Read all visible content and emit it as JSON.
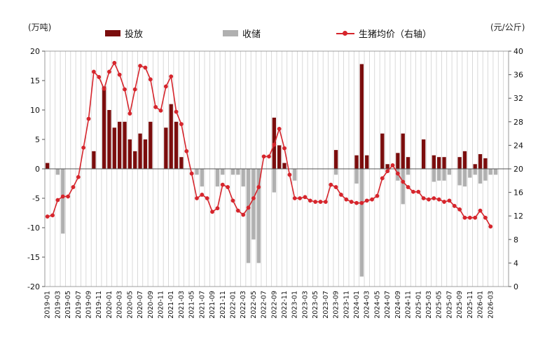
{
  "units": {
    "left": "(万吨)",
    "right": "(元/公斤)"
  },
  "legend": [
    {
      "label": "投放",
      "color": "#7b0d0d",
      "kind": "bar"
    },
    {
      "label": "收储",
      "color": "#b0b0b0",
      "kind": "bar"
    },
    {
      "label": "生猪均价（右轴）",
      "color": "#d6252c",
      "kind": "line"
    }
  ],
  "chart_data": {
    "type": "bar",
    "title": "",
    "ylim_left": [
      -20,
      20
    ],
    "yticks_left": [
      -20,
      -15,
      -10,
      -5,
      0,
      5,
      10,
      15,
      20
    ],
    "ylim_right": [
      0,
      40
    ],
    "yticks_right": [
      0,
      4,
      8,
      12,
      16,
      20,
      24,
      28,
      32,
      36,
      40
    ],
    "x_start": "2019-01",
    "x_months": 90,
    "xtick_labels": [
      "2019-01",
      "2019-03",
      "2019-05",
      "2019-07",
      "2019-09",
      "2019-11",
      "2020-01",
      "2020-03",
      "2020-05",
      "2020-07",
      "2020-09",
      "2020-11",
      "2021-01",
      "2021-03",
      "2021-05",
      "2021-07",
      "2021-09",
      "2021-11",
      "2022-01",
      "2022-03",
      "2022-05",
      "2022-07",
      "2022-09",
      "2022-11",
      "2023-01",
      "2023-03",
      "2023-05",
      "2023-07",
      "2023-09",
      "2023-11",
      "2024-01",
      "2024-03",
      "2024-05",
      "2024-07",
      "2024-09",
      "2024-11",
      "2025-01",
      "2025-03",
      "2025-05",
      "2025-07",
      "2025-09",
      "2025-11",
      "2026-01",
      "2026-03"
    ],
    "grid": "vertical",
    "series": [
      {
        "name": "投放",
        "color": "#7b0d0d",
        "points": [
          [
            "2019-01",
            1
          ],
          [
            "2019-10",
            3
          ],
          [
            "2019-12",
            14
          ],
          [
            "2020-01",
            10
          ],
          [
            "2020-02",
            7
          ],
          [
            "2020-03",
            8
          ],
          [
            "2020-04",
            8
          ],
          [
            "2020-05",
            5
          ],
          [
            "2020-06",
            3
          ],
          [
            "2020-07",
            6
          ],
          [
            "2020-08",
            5
          ],
          [
            "2020-09",
            8
          ],
          [
            "2020-12",
            7
          ],
          [
            "2021-01",
            11
          ],
          [
            "2021-02",
            8
          ],
          [
            "2021-03",
            2
          ],
          [
            "2022-09",
            8.7
          ],
          [
            "2022-10",
            4
          ],
          [
            "2022-11",
            1
          ],
          [
            "2023-09",
            3.2
          ],
          [
            "2024-01",
            2.3
          ],
          [
            "2024-02",
            17.8
          ],
          [
            "2024-03",
            2.3
          ],
          [
            "2024-06",
            6
          ],
          [
            "2024-07",
            0.8
          ],
          [
            "2024-09",
            2.7
          ],
          [
            "2024-10",
            6
          ],
          [
            "2024-11",
            2
          ],
          [
            "2025-02",
            5
          ],
          [
            "2025-04",
            2.3
          ],
          [
            "2025-05",
            2
          ],
          [
            "2025-06",
            2
          ],
          [
            "2025-09",
            2
          ],
          [
            "2025-10",
            3
          ],
          [
            "2025-12",
            0.8
          ],
          [
            "2026-01",
            2.5
          ],
          [
            "2026-02",
            1.8
          ]
        ]
      },
      {
        "name": "收储",
        "color": "#b0b0b0",
        "points": [
          [
            "2019-03",
            -1
          ],
          [
            "2019-04",
            -11
          ],
          [
            "2021-06",
            -1
          ],
          [
            "2021-07",
            -3
          ],
          [
            "2021-10",
            -3
          ],
          [
            "2021-11",
            -1
          ],
          [
            "2022-01",
            -1
          ],
          [
            "2022-02",
            -1
          ],
          [
            "2022-03",
            -3
          ],
          [
            "2022-04",
            -16
          ],
          [
            "2022-05",
            -12
          ],
          [
            "2022-06",
            -16
          ],
          [
            "2022-09",
            -4
          ],
          [
            "2023-01",
            -2
          ],
          [
            "2023-09",
            -1
          ],
          [
            "2024-01",
            -2.5
          ],
          [
            "2024-02",
            -18.3
          ],
          [
            "2024-09",
            -2
          ],
          [
            "2024-10",
            -6
          ],
          [
            "2024-11",
            -1
          ],
          [
            "2025-04",
            -2.2
          ],
          [
            "2025-05",
            -2
          ],
          [
            "2025-06",
            -2
          ],
          [
            "2025-07",
            -1
          ],
          [
            "2025-09",
            -2.8
          ],
          [
            "2025-10",
            -3
          ],
          [
            "2025-11",
            -1.5
          ],
          [
            "2025-12",
            -1
          ],
          [
            "2026-01",
            -2.5
          ],
          [
            "2026-02",
            -2
          ],
          [
            "2026-03",
            -1
          ],
          [
            "2026-04",
            -1
          ]
        ]
      },
      {
        "name": "生猪均价（右轴）",
        "color": "#d6252c",
        "axis": "right",
        "points": [
          [
            "2019-01",
            11.9
          ],
          [
            "2019-02",
            12.1
          ],
          [
            "2019-03",
            14.7
          ],
          [
            "2019-04",
            15.3
          ],
          [
            "2019-05",
            15.3
          ],
          [
            "2019-06",
            16.9
          ],
          [
            "2019-07",
            18.6
          ],
          [
            "2019-08",
            23.6
          ],
          [
            "2019-09",
            28.5
          ],
          [
            "2019-10",
            36.5
          ],
          [
            "2019-11",
            35.6
          ],
          [
            "2019-12",
            33.6
          ],
          [
            "2020-01",
            36.5
          ],
          [
            "2020-02",
            38.0
          ],
          [
            "2020-03",
            36.0
          ],
          [
            "2020-04",
            33.5
          ],
          [
            "2020-05",
            29.4
          ],
          [
            "2020-06",
            33.5
          ],
          [
            "2020-07",
            37.5
          ],
          [
            "2020-08",
            37.2
          ],
          [
            "2020-09",
            35.2
          ],
          [
            "2020-10",
            30.5
          ],
          [
            "2020-11",
            29.9
          ],
          [
            "2020-12",
            34.0
          ],
          [
            "2021-01",
            35.7
          ],
          [
            "2021-02",
            29.7
          ],
          [
            "2021-03",
            27.6
          ],
          [
            "2021-04",
            23.0
          ],
          [
            "2021-05",
            19.2
          ],
          [
            "2021-06",
            15.0
          ],
          [
            "2021-07",
            15.6
          ],
          [
            "2021-08",
            15.0
          ],
          [
            "2021-09",
            12.7
          ],
          [
            "2021-10",
            13.3
          ],
          [
            "2021-11",
            17.3
          ],
          [
            "2021-12",
            16.9
          ],
          [
            "2022-01",
            14.6
          ],
          [
            "2022-02",
            12.9
          ],
          [
            "2022-03",
            12.2
          ],
          [
            "2022-04",
            13.4
          ],
          [
            "2022-05",
            15.0
          ],
          [
            "2022-06",
            16.9
          ],
          [
            "2022-07",
            22.1
          ],
          [
            "2022-08",
            22.1
          ],
          [
            "2022-09",
            24.1
          ],
          [
            "2022-10",
            26.8
          ],
          [
            "2022-11",
            23.5
          ],
          [
            "2022-12",
            19.0
          ],
          [
            "2023-01",
            15.0
          ],
          [
            "2023-02",
            15.0
          ],
          [
            "2023-03",
            15.2
          ],
          [
            "2023-04",
            14.6
          ],
          [
            "2023-05",
            14.4
          ],
          [
            "2023-06",
            14.4
          ],
          [
            "2023-07",
            14.4
          ],
          [
            "2023-08",
            17.3
          ],
          [
            "2023-09",
            16.9
          ],
          [
            "2023-10",
            15.6
          ],
          [
            "2023-11",
            14.8
          ],
          [
            "2023-12",
            14.4
          ],
          [
            "2024-01",
            14.2
          ],
          [
            "2024-02",
            14.2
          ],
          [
            "2024-03",
            14.6
          ],
          [
            "2024-04",
            14.8
          ],
          [
            "2024-05",
            15.4
          ],
          [
            "2024-06",
            18.4
          ],
          [
            "2024-07",
            19.6
          ],
          [
            "2024-08",
            20.6
          ],
          [
            "2024-09",
            19.2
          ],
          [
            "2024-10",
            17.8
          ],
          [
            "2024-11",
            16.9
          ],
          [
            "2024-12",
            16.1
          ],
          [
            "2025-01",
            16.1
          ],
          [
            "2025-02",
            15.0
          ],
          [
            "2025-03",
            14.8
          ],
          [
            "2025-04",
            15.0
          ],
          [
            "2025-05",
            14.8
          ],
          [
            "2025-06",
            14.4
          ],
          [
            "2025-07",
            14.6
          ],
          [
            "2025-08",
            13.7
          ],
          [
            "2025-09",
            13.1
          ],
          [
            "2025-10",
            11.7
          ],
          [
            "2025-11",
            11.7
          ],
          [
            "2025-12",
            11.7
          ],
          [
            "2026-01",
            12.9
          ],
          [
            "2026-02",
            11.7
          ],
          [
            "2026-03",
            10.2
          ]
        ]
      }
    ]
  }
}
